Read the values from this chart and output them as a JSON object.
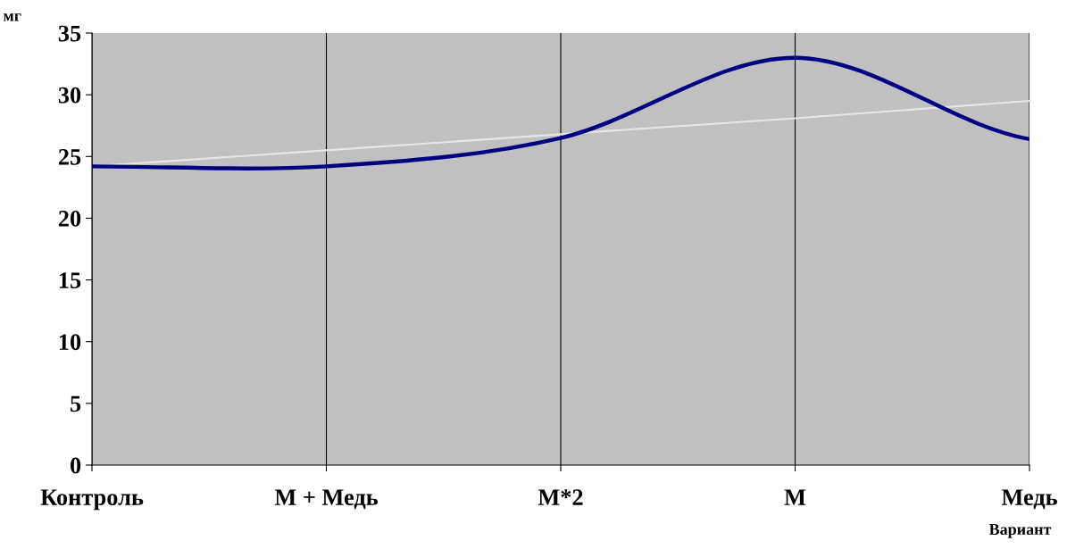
{
  "chart_data": {
    "type": "line",
    "xlabel": "Вариант",
    "ylabel": "мг",
    "categories": [
      "Контроль",
      "М + Медь",
      "М*2",
      "М",
      "Медь"
    ],
    "series": [
      {
        "color": "#000080",
        "values": [
          24.2,
          24.2,
          26.5,
          33.0,
          26.4
        ]
      },
      {
        "color": "#e6e6e6",
        "values": [
          24.2,
          25.5,
          26.8,
          28.1,
          29.5
        ]
      }
    ],
    "ylim": [
      0,
      35
    ],
    "yticks": [
      0,
      5,
      10,
      15,
      20,
      25,
      30,
      35
    ],
    "grid": "x",
    "marker": "none",
    "line_style": "solid",
    "legend": false
  }
}
